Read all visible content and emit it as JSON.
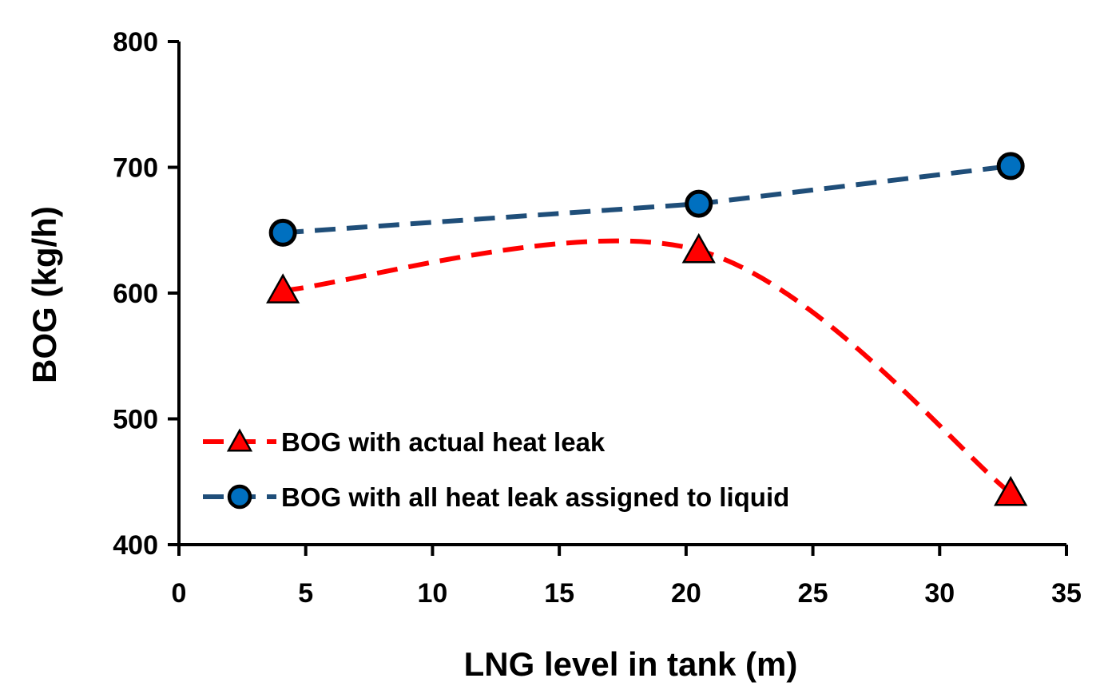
{
  "chart_data": {
    "type": "line",
    "xlabel": "LNG level in tank (m)",
    "ylabel": "BOG (kg/h)",
    "xlim": [
      0,
      35
    ],
    "ylim": [
      400,
      800
    ],
    "x_ticks": [
      0,
      5,
      10,
      15,
      20,
      25,
      30,
      35
    ],
    "y_ticks": [
      400,
      500,
      600,
      700,
      800
    ],
    "grid": false,
    "legend_position": "lower-left",
    "series": [
      {
        "name": "BOG with actual heat leak",
        "color": "#ff0000",
        "marker": "triangle",
        "marker_color": "#ff0000",
        "line_style": "dashed-smooth",
        "x": [
          4.1,
          20.5,
          32.8
        ],
        "y": [
          602,
          634,
          441
        ]
      },
      {
        "name": "BOG with all heat leak assigned to liquid",
        "color": "#1f4e79",
        "marker": "circle",
        "marker_color": "#0070c0",
        "line_style": "dashed",
        "x": [
          4.1,
          20.5,
          32.8
        ],
        "y": [
          648,
          671,
          701
        ]
      }
    ]
  }
}
